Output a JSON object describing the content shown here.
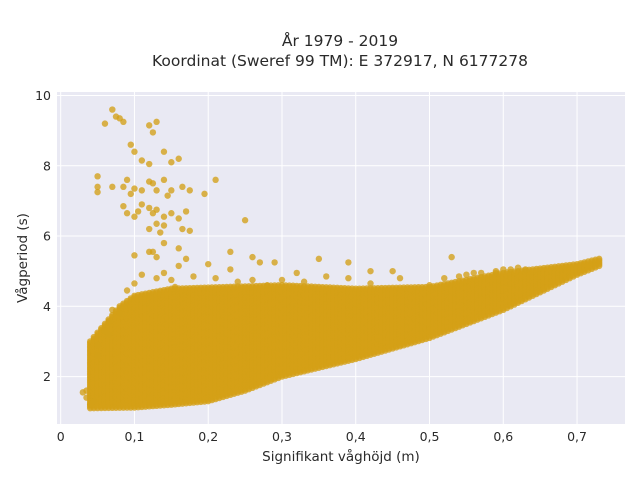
{
  "chart_data": {
    "type": "scatter",
    "title_line1": "År 1979 - 2019",
    "title_line2": "Koordinat (Sweref 99 TM): E 372917, N 6177278",
    "xlabel": "Signifikant våghöjd (m)",
    "ylabel": "Vågperiod (s)",
    "xlim": [
      -0.005,
      0.765
    ],
    "ylim": [
      0.65,
      10.1
    ],
    "x_ticks": [
      0,
      0.1,
      0.2,
      0.3,
      0.4,
      0.5,
      0.6,
      0.7
    ],
    "x_tick_labels": [
      "0",
      "0,1",
      "0,2",
      "0,3",
      "0,4",
      "0,5",
      "0,6",
      "0,7"
    ],
    "y_ticks": [
      2,
      4,
      6,
      8,
      10
    ],
    "y_tick_labels": [
      "2",
      "4",
      "6",
      "8",
      "10"
    ],
    "grid": true,
    "colors": {
      "marker": "#d4a017",
      "plot_bg": "#e9e9f3",
      "grid": "#ffffff"
    },
    "dense_band": {
      "x_min": 0.04,
      "x_max": 0.73,
      "x_step": 0.005,
      "lower_edge": [
        [
          0.04,
          1.1
        ],
        [
          0.1,
          1.12
        ],
        [
          0.15,
          1.2
        ],
        [
          0.2,
          1.3
        ],
        [
          0.25,
          1.6
        ],
        [
          0.3,
          2.0
        ],
        [
          0.4,
          2.5
        ],
        [
          0.5,
          3.1
        ],
        [
          0.6,
          3.9
        ],
        [
          0.7,
          4.9
        ],
        [
          0.73,
          5.15
        ]
      ],
      "upper_edge": [
        [
          0.04,
          3.0
        ],
        [
          0.08,
          4.0
        ],
        [
          0.1,
          4.3
        ],
        [
          0.15,
          4.5
        ],
        [
          0.3,
          4.6
        ],
        [
          0.4,
          4.5
        ],
        [
          0.5,
          4.55
        ],
        [
          0.6,
          4.95
        ],
        [
          0.7,
          5.2
        ],
        [
          0.73,
          5.35
        ]
      ]
    },
    "points": [
      [
        0.03,
        1.55
      ],
      [
        0.035,
        1.4
      ],
      [
        0.05,
        2.6
      ],
      [
        0.05,
        2.9
      ],
      [
        0.06,
        3.3
      ],
      [
        0.065,
        3.55
      ],
      [
        0.08,
        3.8
      ],
      [
        0.06,
        9.2
      ],
      [
        0.07,
        9.6
      ],
      [
        0.075,
        9.4
      ],
      [
        0.08,
        9.35
      ],
      [
        0.085,
        9.25
      ],
      [
        0.095,
        8.6
      ],
      [
        0.1,
        8.4
      ],
      [
        0.12,
        9.15
      ],
      [
        0.125,
        8.95
      ],
      [
        0.13,
        9.25
      ],
      [
        0.11,
        8.15
      ],
      [
        0.12,
        8.05
      ],
      [
        0.14,
        8.4
      ],
      [
        0.15,
        8.1
      ],
      [
        0.16,
        8.2
      ],
      [
        0.05,
        7.7
      ],
      [
        0.05,
        7.4
      ],
      [
        0.05,
        7.25
      ],
      [
        0.07,
        7.4
      ],
      [
        0.085,
        7.4
      ],
      [
        0.09,
        7.6
      ],
      [
        0.095,
        7.2
      ],
      [
        0.1,
        7.35
      ],
      [
        0.11,
        7.3
      ],
      [
        0.12,
        7.55
      ],
      [
        0.125,
        7.5
      ],
      [
        0.13,
        7.3
      ],
      [
        0.14,
        7.6
      ],
      [
        0.145,
        7.15
      ],
      [
        0.15,
        7.3
      ],
      [
        0.165,
        7.4
      ],
      [
        0.175,
        7.3
      ],
      [
        0.195,
        7.2
      ],
      [
        0.21,
        7.6
      ],
      [
        0.085,
        6.85
      ],
      [
        0.09,
        6.65
      ],
      [
        0.1,
        6.55
      ],
      [
        0.105,
        6.7
      ],
      [
        0.11,
        6.9
      ],
      [
        0.12,
        6.8
      ],
      [
        0.125,
        6.65
      ],
      [
        0.13,
        6.75
      ],
      [
        0.14,
        6.55
      ],
      [
        0.15,
        6.65
      ],
      [
        0.16,
        6.5
      ],
      [
        0.17,
        6.7
      ],
      [
        0.12,
        6.2
      ],
      [
        0.135,
        6.1
      ],
      [
        0.14,
        6.3
      ],
      [
        0.165,
        6.2
      ],
      [
        0.175,
        6.15
      ],
      [
        0.25,
        6.45
      ],
      [
        0.14,
        5.8
      ],
      [
        0.16,
        5.65
      ],
      [
        0.1,
        5.45
      ],
      [
        0.12,
        5.55
      ],
      [
        0.13,
        5.4
      ],
      [
        0.16,
        5.15
      ],
      [
        0.17,
        5.35
      ],
      [
        0.2,
        5.2
      ],
      [
        0.23,
        5.55
      ],
      [
        0.26,
        5.4
      ],
      [
        0.23,
        5.05
      ],
      [
        0.27,
        5.25
      ],
      [
        0.29,
        5.25
      ],
      [
        0.32,
        4.95
      ],
      [
        0.35,
        5.35
      ],
      [
        0.39,
        5.25
      ],
      [
        0.42,
        5.0
      ],
      [
        0.45,
        5.0
      ],
      [
        0.13,
        4.8
      ],
      [
        0.14,
        4.95
      ],
      [
        0.15,
        4.75
      ],
      [
        0.18,
        4.85
      ],
      [
        0.21,
        4.8
      ],
      [
        0.24,
        4.7
      ],
      [
        0.26,
        4.75
      ],
      [
        0.28,
        4.6
      ],
      [
        0.3,
        4.75
      ],
      [
        0.33,
        4.7
      ],
      [
        0.36,
        4.85
      ],
      [
        0.39,
        4.8
      ],
      [
        0.42,
        4.65
      ],
      [
        0.46,
        4.8
      ],
      [
        0.5,
        4.6
      ],
      [
        0.52,
        4.8
      ],
      [
        0.54,
        4.85
      ],
      [
        0.57,
        4.95
      ],
      [
        0.59,
        4.95
      ],
      [
        0.61,
        5.05
      ],
      [
        0.63,
        5.05
      ],
      [
        0.55,
        4.9
      ],
      [
        0.56,
        4.95
      ],
      [
        0.59,
        5.0
      ],
      [
        0.6,
        5.05
      ],
      [
        0.62,
        5.1
      ],
      [
        0.53,
        5.4
      ],
      [
        0.09,
        4.45
      ],
      [
        0.1,
        4.65
      ],
      [
        0.11,
        4.9
      ],
      [
        0.125,
        5.55
      ],
      [
        0.13,
        6.35
      ],
      [
        0.155,
        4.55
      ],
      [
        0.07,
        3.9
      ],
      [
        0.065,
        3.2
      ],
      [
        0.045,
        1.3
      ],
      [
        0.04,
        1.2
      ],
      [
        0.035,
        1.6
      ]
    ]
  }
}
